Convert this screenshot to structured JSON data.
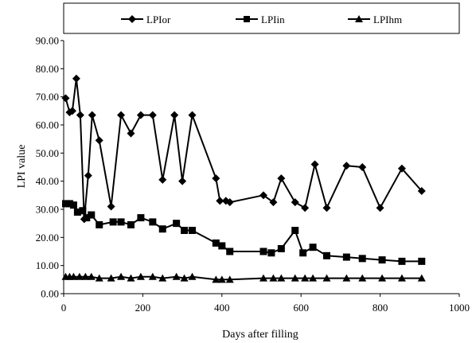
{
  "chart_data": {
    "type": "line",
    "title": "",
    "xlabel": "Days after filling",
    "ylabel": "LPI value",
    "xlim": [
      0,
      1000
    ],
    "ylim": [
      0,
      90
    ],
    "x_ticks": [
      "0",
      "200",
      "400",
      "600",
      "800",
      "1000"
    ],
    "y_ticks": [
      "0.00",
      "10.00",
      "20.00",
      "30.00",
      "40.00",
      "50.00",
      "60.00",
      "70.00",
      "80.00",
      "90.00"
    ],
    "grid": false,
    "legend_position": "top",
    "series": [
      {
        "name": "LPIor",
        "marker": "diamond",
        "points": [
          [
            5,
            69.5
          ],
          [
            15,
            64.5
          ],
          [
            22,
            65
          ],
          [
            32,
            76.5
          ],
          [
            42,
            63.5
          ],
          [
            52,
            26.5
          ],
          [
            62,
            42
          ],
          [
            72,
            63.5
          ],
          [
            90,
            54.5
          ],
          [
            120,
            31
          ],
          [
            145,
            63.5
          ],
          [
            170,
            57
          ],
          [
            195,
            63.5
          ],
          [
            225,
            63.5
          ],
          [
            250,
            40.5
          ],
          [
            280,
            63.5
          ],
          [
            300,
            40
          ],
          [
            325,
            63.5
          ],
          [
            385,
            41
          ],
          [
            395,
            33
          ],
          [
            410,
            33
          ],
          [
            420,
            32.5
          ],
          [
            505,
            35
          ],
          [
            530,
            32.5
          ],
          [
            550,
            41
          ],
          [
            585,
            32.5
          ],
          [
            610,
            30.5
          ],
          [
            635,
            46
          ],
          [
            665,
            30.5
          ],
          [
            715,
            45.5
          ],
          [
            755,
            45
          ],
          [
            800,
            30.5
          ],
          [
            855,
            44.5
          ],
          [
            905,
            36.5
          ]
        ]
      },
      {
        "name": "LPIin",
        "marker": "square",
        "points": [
          [
            5,
            32
          ],
          [
            15,
            32
          ],
          [
            25,
            31.5
          ],
          [
            35,
            29
          ],
          [
            48,
            29.5
          ],
          [
            58,
            27
          ],
          [
            70,
            28
          ],
          [
            90,
            24.5
          ],
          [
            125,
            25.5
          ],
          [
            145,
            25.5
          ],
          [
            170,
            24.5
          ],
          [
            195,
            27
          ],
          [
            225,
            25.5
          ],
          [
            250,
            23
          ],
          [
            285,
            25
          ],
          [
            305,
            22.5
          ],
          [
            325,
            22.5
          ],
          [
            385,
            18
          ],
          [
            400,
            17
          ],
          [
            420,
            15
          ],
          [
            505,
            15
          ],
          [
            525,
            14.5
          ],
          [
            550,
            16
          ],
          [
            585,
            22.5
          ],
          [
            605,
            14.5
          ],
          [
            630,
            16.5
          ],
          [
            665,
            13.5
          ],
          [
            715,
            13
          ],
          [
            755,
            12.5
          ],
          [
            805,
            12
          ],
          [
            855,
            11.5
          ],
          [
            905,
            11.5
          ]
        ]
      },
      {
        "name": "LPIhm",
        "marker": "triangle",
        "points": [
          [
            5,
            6
          ],
          [
            15,
            6
          ],
          [
            25,
            6
          ],
          [
            40,
            6
          ],
          [
            55,
            6
          ],
          [
            70,
            6
          ],
          [
            90,
            5.5
          ],
          [
            120,
            5.5
          ],
          [
            145,
            6
          ],
          [
            170,
            5.5
          ],
          [
            195,
            6
          ],
          [
            225,
            6
          ],
          [
            250,
            5.5
          ],
          [
            285,
            6
          ],
          [
            305,
            5.5
          ],
          [
            325,
            6
          ],
          [
            385,
            5
          ],
          [
            400,
            5
          ],
          [
            420,
            5
          ],
          [
            505,
            5.5
          ],
          [
            530,
            5.5
          ],
          [
            550,
            5.5
          ],
          [
            585,
            5.5
          ],
          [
            610,
            5.5
          ],
          [
            630,
            5.5
          ],
          [
            665,
            5.5
          ],
          [
            715,
            5.5
          ],
          [
            755,
            5.5
          ],
          [
            805,
            5.5
          ],
          [
            855,
            5.5
          ],
          [
            905,
            5.5
          ]
        ]
      }
    ]
  }
}
